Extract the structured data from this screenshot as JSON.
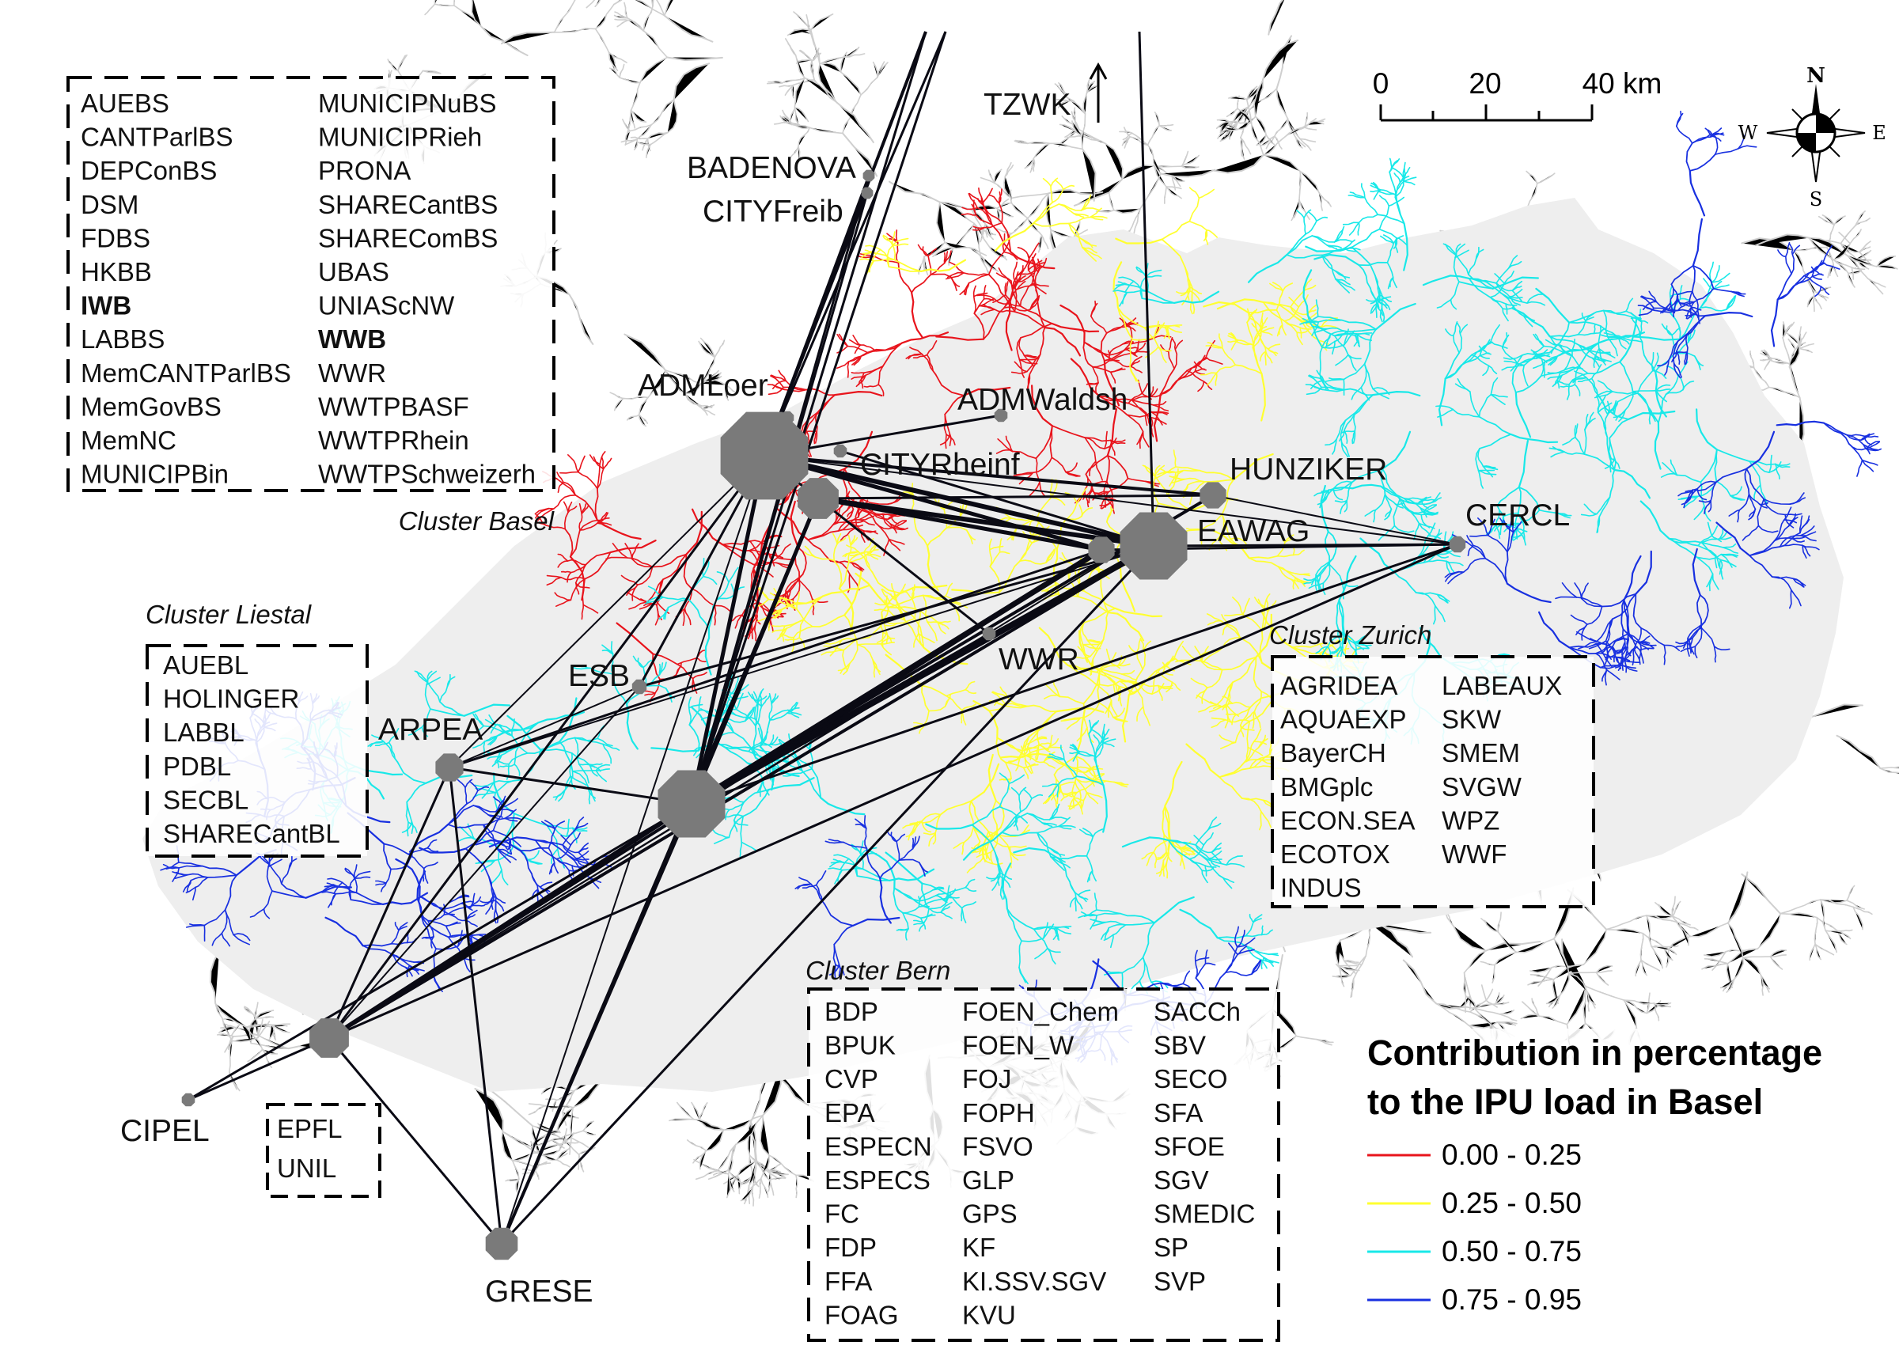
{
  "colors": {
    "red": "#e8141c",
    "yellow": "#ffff30",
    "cyan": "#18e8e8",
    "blue": "#1830e0",
    "node": "#7a7a7a",
    "river_grey": "#cfcfcf",
    "basin_fill": "#e6e6e6"
  },
  "scale": {
    "labels": [
      "0",
      "20",
      "40 km"
    ]
  },
  "compass": {
    "n": "N",
    "s": "S",
    "e": "E",
    "w": "W"
  },
  "actors": {
    "tzwk": "TZWK",
    "badenova": "BADENOVA",
    "cityfreib": "CITYFreib",
    "admloer": "ADMLoer",
    "admwaldsh": "ADMWaldsh",
    "cityrheinf": "CITYRheinf",
    "hunziker": "HUNZIKER",
    "eawag": "EAWAG",
    "cercl": "CERCL",
    "wwr": "WWR",
    "esb": "ESB",
    "arpea": "ARPEA",
    "cipel": "CIPEL",
    "grese": "GRESE"
  },
  "clusters": {
    "basel": {
      "title": "Cluster Basel",
      "col1": [
        "AUEBS",
        "CANTParlBS",
        "DEPConBS",
        "DSM",
        "FDBS",
        "HKBB",
        "IWB",
        "LABBS",
        "MemCANTParlBS",
        "MemGovBS",
        "MemNC",
        "MUNICIPBin"
      ],
      "col2": [
        "MUNICIPNuBS",
        "MUNICIPRieh",
        "PRONA",
        "SHARECantBS",
        "SHAREComBS",
        "UBAS",
        "UNIAScNW",
        "WWB",
        "WWR",
        "WWTPBASF",
        "WWTPRhein",
        "WWTPSchweizerh"
      ]
    },
    "liestal": {
      "title": "Cluster Liestal",
      "col1": [
        "AUEBL",
        "HOLINGER",
        "LABBL",
        "PDBL",
        "SECBL",
        "SHARECantBL"
      ]
    },
    "zurich": {
      "title": "Cluster Zurich",
      "col1": [
        "AGRIDEA",
        "AQUAEXP",
        "BayerCH",
        "BMGplc",
        "ECON.SEA",
        "ECOTOX",
        "INDUS"
      ],
      "col2": [
        "LABEAUX",
        "SKW",
        "SMEM",
        "SVGW",
        "WPZ",
        "WWF"
      ]
    },
    "bern": {
      "title": "Cluster Bern",
      "col1": [
        "BDP",
        "BPUK",
        "CVP",
        "EPA",
        "ESPECN",
        "ESPECS",
        "FC",
        "FDP",
        "FFA",
        "FOAG"
      ],
      "col2": [
        "FOEN_Chem",
        "FOEN_W",
        "FOJ",
        "FOPH",
        "FSVO",
        "GLP",
        "GPS",
        "KF",
        "KI.SSV.SGV",
        "KVU"
      ],
      "col3": [
        "SACCh",
        "SBV",
        "SECO",
        "SFA",
        "SFOE",
        "SGV",
        "SMEDIC",
        "SP",
        "SVP"
      ]
    },
    "epfl": {
      "col1": [
        "EPFL",
        "UNIL"
      ]
    }
  },
  "legend": {
    "title_line1": "Contribution in percentage",
    "title_line2": "to the IPU load in Basel",
    "items": [
      {
        "label": "0.00 - 0.25",
        "color": "#e8141c"
      },
      {
        "label": "0.25 - 0.50",
        "color": "#ffff30"
      },
      {
        "label": "0.50 - 0.75",
        "color": "#18e8e8"
      },
      {
        "label": "0.75 - 0.95",
        "color": "#1830e0"
      }
    ]
  }
}
